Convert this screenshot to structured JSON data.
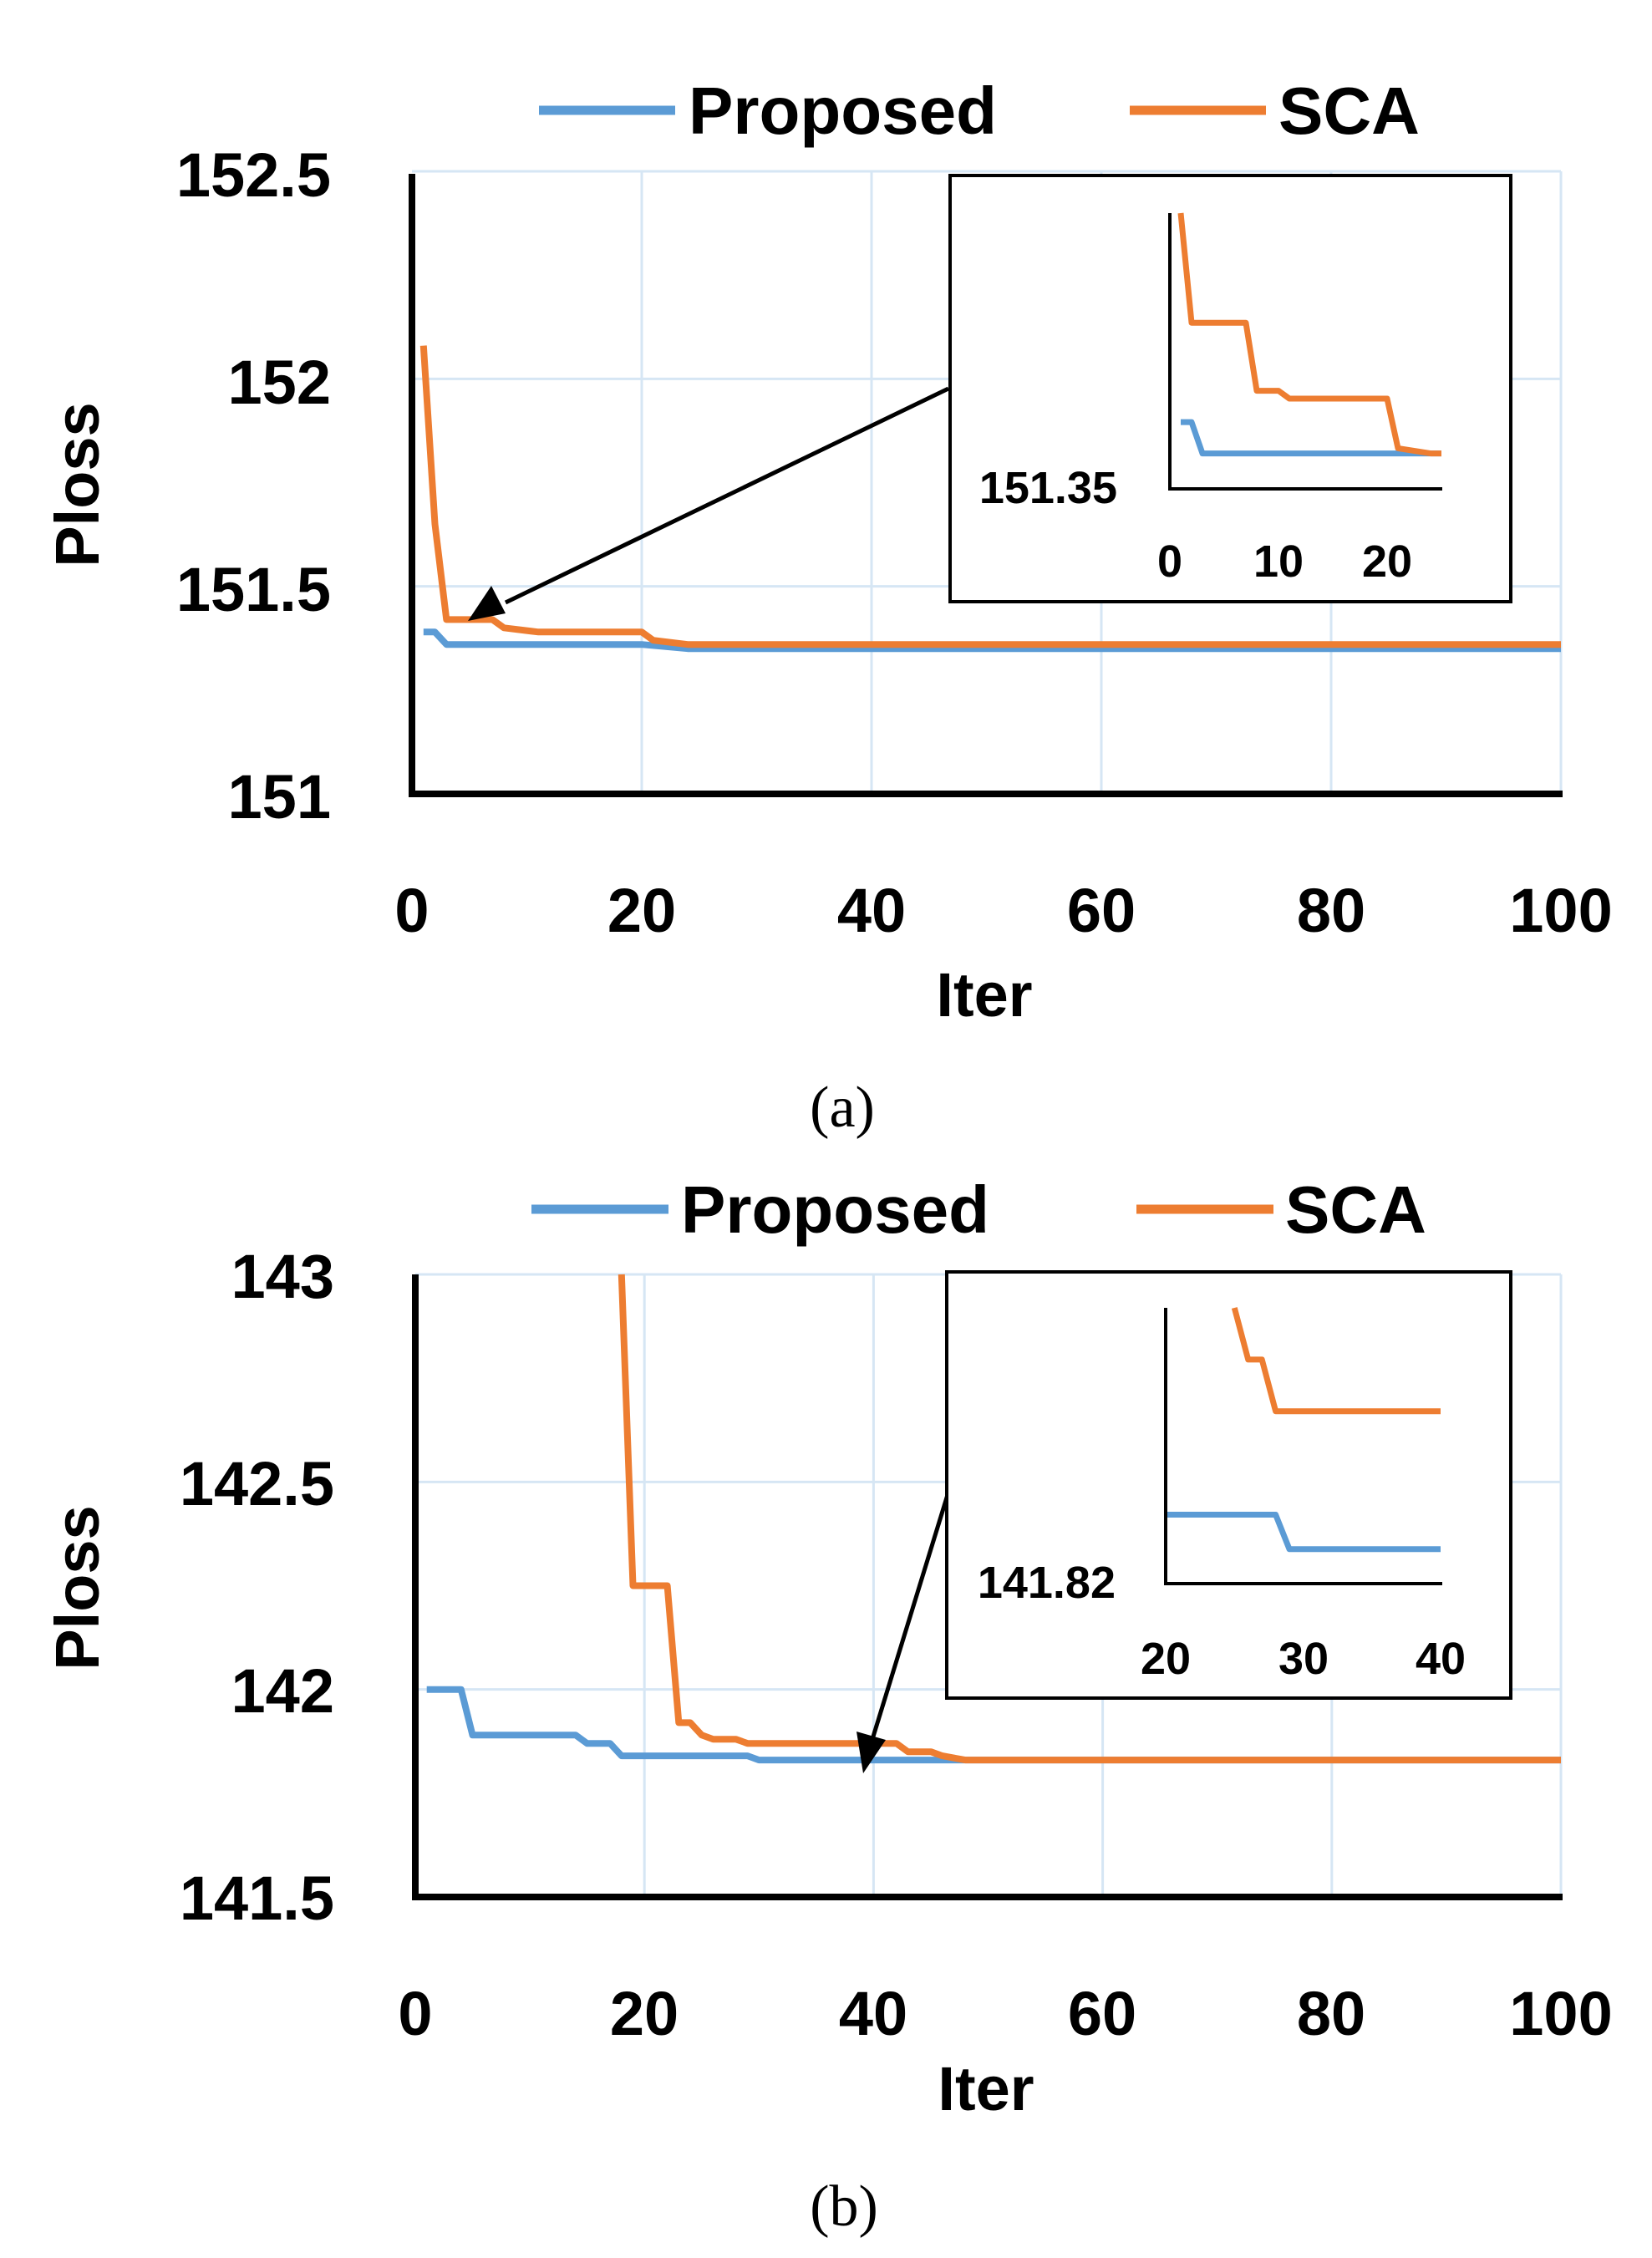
{
  "colors": {
    "proposed": "#5B9BD5",
    "sca": "#ED7D31",
    "grid": "#D6E6F4",
    "axis": "#000000"
  },
  "chart_data": [
    {
      "type": "line",
      "caption": "(a)",
      "xlabel": "Iter",
      "ylabel": "Ploss",
      "xlim": [
        0,
        100
      ],
      "ylim": [
        151,
        152.5
      ],
      "xticks": [
        "0",
        "20",
        "40",
        "60",
        "80",
        "100"
      ],
      "yticks": [
        "151",
        "151.5",
        "152",
        "152.5"
      ],
      "legend": [
        "Proposed",
        "SCA"
      ],
      "series": [
        {
          "name": "Proposed",
          "x": [
            1,
            2,
            3,
            5,
            10,
            20,
            24,
            100
          ],
          "y": [
            151.39,
            151.39,
            151.36,
            151.36,
            151.36,
            151.36,
            151.35,
            151.35
          ]
        },
        {
          "name": "SCA",
          "x": [
            1,
            2,
            3,
            7,
            8,
            11,
            20,
            21,
            24,
            100
          ],
          "y": [
            152.08,
            151.65,
            151.42,
            151.42,
            151.4,
            151.39,
            151.39,
            151.37,
            151.36,
            151.36
          ]
        }
      ],
      "inset": {
        "ylabel": "151.35",
        "xticks": [
          "0",
          "10",
          "20"
        ],
        "xlim": [
          0,
          25
        ],
        "ylim": [
          151.35,
          152.3
        ],
        "series": [
          {
            "name": "Proposed",
            "x": [
              1,
              2,
              3,
              5,
              10,
              20,
              24,
              25
            ],
            "y": [
              151.5,
              151.5,
              151.38,
              151.38,
              151.38,
              151.38,
              151.38,
              151.38
            ]
          },
          {
            "name": "SCA",
            "x": [
              1,
              2,
              7,
              8,
              10,
              11,
              20,
              21,
              24,
              25
            ],
            "y": [
              152.3,
              151.88,
              151.88,
              151.62,
              151.62,
              151.59,
              151.59,
              151.4,
              151.38,
              151.38
            ]
          }
        ]
      }
    },
    {
      "type": "line",
      "caption": "(b)",
      "xlabel": "Iter",
      "ylabel": "Ploss",
      "xlim": [
        0,
        100
      ],
      "ylim": [
        141.5,
        143
      ],
      "xticks": [
        "0",
        "20",
        "40",
        "60",
        "80",
        "100"
      ],
      "yticks": [
        "141.5",
        "142",
        "142.5",
        "143"
      ],
      "legend": [
        "Proposed",
        "SCA"
      ],
      "series": [
        {
          "name": "Proposed",
          "x": [
            1,
            4,
            5,
            14,
            15,
            17,
            18,
            29,
            30,
            47,
            100
          ],
          "y": [
            142.0,
            142.0,
            141.89,
            141.89,
            141.87,
            141.87,
            141.84,
            141.84,
            141.83,
            141.83,
            141.83
          ]
        },
        {
          "name": "SCA",
          "x": [
            18,
            19,
            22,
            23,
            24,
            25,
            26,
            28,
            29,
            42,
            43,
            45,
            46,
            48,
            100
          ],
          "y": [
            143.0,
            142.25,
            142.25,
            141.92,
            141.92,
            141.89,
            141.88,
            141.88,
            141.87,
            141.87,
            141.85,
            141.85,
            141.84,
            141.83,
            141.83
          ]
        }
      ],
      "inset": {
        "ylabel": "141.82",
        "xticks": [
          "20",
          "30",
          "40"
        ],
        "xlim": [
          20,
          40
        ],
        "ylim": [
          141.82,
          141.9
        ],
        "series": [
          {
            "name": "Proposed",
            "x": [
              20,
              28,
              29,
              40
            ],
            "y": [
              141.84,
              141.84,
              141.83,
              141.83
            ]
          },
          {
            "name": "SCA",
            "x": [
              25,
              26,
              27,
              28,
              29,
              40
            ],
            "y": [
              141.9,
              141.885,
              141.885,
              141.87,
              141.87,
              141.87
            ]
          }
        ]
      }
    }
  ]
}
